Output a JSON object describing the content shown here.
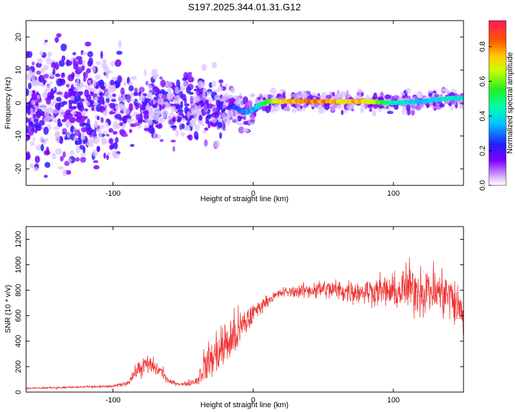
{
  "chart_data": [
    {
      "type": "heatmap",
      "title": "S197.2025.344.01.31.G12",
      "xlabel": "Height of straight line (km)",
      "ylabel": "Frequency (Hz)",
      "xlim": [
        -162,
        150
      ],
      "ylim": [
        -25,
        25
      ],
      "xticks": [
        -100,
        0,
        100
      ],
      "xtick_labels": [
        "-100",
        "0",
        "100"
      ],
      "yticks": [
        -20,
        -10,
        0,
        10,
        20
      ],
      "ytick_labels": [
        "-20",
        "-10",
        "0",
        "10",
        "20"
      ],
      "colorbar": {
        "label": "Normalized spectral amplitude",
        "range": [
          0,
          0.95
        ],
        "ticks": [
          0.0,
          0.2,
          0.4,
          0.6,
          0.8
        ],
        "tick_labels": [
          "0.0",
          "0.2",
          "0.4",
          "0.6",
          "0.8"
        ]
      },
      "ridge": {
        "x": [
          -15,
          -5,
          0,
          5,
          10,
          20,
          40,
          60,
          80,
          100,
          120,
          140,
          150
        ],
        "frequency": [
          -1,
          -3,
          -2,
          -0.5,
          0.5,
          0.5,
          0.5,
          0.5,
          0.5,
          0,
          0.5,
          1.5,
          1.5
        ],
        "amplitude": [
          0.3,
          0.35,
          0.4,
          0.5,
          0.6,
          0.8,
          0.95,
          0.85,
          0.85,
          0.5,
          0.4,
          0.5,
          0.45
        ]
      }
    },
    {
      "type": "line",
      "title": "",
      "xlabel": "Height of straight line (km)",
      "ylabel": "SNR (10 * v/v)",
      "xlim": [
        -162,
        150
      ],
      "ylim": [
        0,
        1300
      ],
      "xticks": [
        -100,
        0,
        100
      ],
      "xtick_labels": [
        "-100",
        "0",
        "100"
      ],
      "yticks": [
        0,
        200,
        400,
        600,
        800,
        1000,
        1200
      ],
      "ytick_labels": [
        "0",
        "200",
        "400",
        "600",
        "800",
        "1000",
        "1200"
      ],
      "color": "#ee3333",
      "x": [
        -162,
        -140,
        -120,
        -100,
        -90,
        -82,
        -75,
        -65,
        -60,
        -50,
        -40,
        -35,
        -25,
        -15,
        -10,
        -5,
        0,
        10,
        20,
        30,
        40,
        50,
        60,
        70,
        80,
        90,
        100,
        105,
        110,
        120,
        130,
        140,
        150
      ],
      "y": [
        30,
        35,
        40,
        45,
        70,
        180,
        220,
        160,
        80,
        60,
        90,
        200,
        320,
        420,
        480,
        550,
        620,
        720,
        780,
        790,
        800,
        810,
        800,
        790,
        790,
        800,
        780,
        790,
        820,
        800,
        790,
        760,
        600
      ],
      "spread": [
        10,
        12,
        12,
        15,
        30,
        100,
        120,
        80,
        30,
        20,
        60,
        200,
        300,
        300,
        260,
        200,
        120,
        60,
        60,
        70,
        100,
        120,
        130,
        140,
        150,
        180,
        200,
        240,
        300,
        300,
        300,
        300,
        300
      ]
    }
  ]
}
